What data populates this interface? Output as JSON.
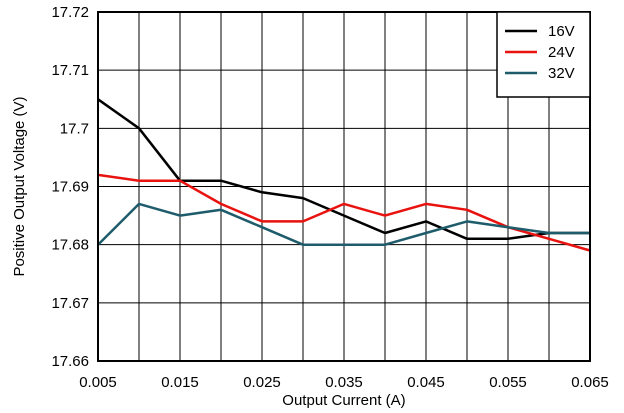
{
  "chart_data": {
    "type": "line",
    "title": "",
    "xlabel": "Output Current (A)",
    "ylabel": "Positive Output Voltage (V)",
    "xlim": [
      0.005,
      0.065
    ],
    "ylim": [
      17.66,
      17.72
    ],
    "grid": true,
    "legend_position": "top-right",
    "x_ticks": [
      "0.005",
      "0.015",
      "0.025",
      "0.035",
      "0.045",
      "0.055",
      "0.065"
    ],
    "x_tick_values": [
      0.005,
      0.015,
      0.025,
      0.035,
      0.045,
      0.055,
      0.065
    ],
    "x_grid_values": [
      0.005,
      0.01,
      0.015,
      0.02,
      0.025,
      0.03,
      0.035,
      0.04,
      0.045,
      0.05,
      0.055,
      0.06,
      0.065
    ],
    "y_ticks": [
      "17.66",
      "17.67",
      "17.68",
      "17.69",
      "17.7",
      "17.71",
      "17.72"
    ],
    "y_tick_values": [
      17.66,
      17.67,
      17.68,
      17.69,
      17.7,
      17.71,
      17.72
    ],
    "x": [
      0.005,
      0.01,
      0.015,
      0.02,
      0.025,
      0.03,
      0.035,
      0.04,
      0.045,
      0.05,
      0.055,
      0.06,
      0.065
    ],
    "series": [
      {
        "name": "16V",
        "color": "#000000",
        "values": [
          17.705,
          17.7,
          17.691,
          17.691,
          17.689,
          17.688,
          17.685,
          17.682,
          17.684,
          17.681,
          17.681,
          17.682,
          17.682
        ]
      },
      {
        "name": "24V",
        "color": "#e8120f",
        "values": [
          17.692,
          17.691,
          17.691,
          17.687,
          17.684,
          17.684,
          17.687,
          17.685,
          17.687,
          17.686,
          17.683,
          17.681,
          17.679
        ]
      },
      {
        "name": "32V",
        "color": "#1f5c6b",
        "values": [
          17.68,
          17.687,
          17.685,
          17.686,
          17.683,
          17.68,
          17.68,
          17.68,
          17.682,
          17.684,
          17.683,
          17.682,
          17.682
        ]
      }
    ]
  }
}
